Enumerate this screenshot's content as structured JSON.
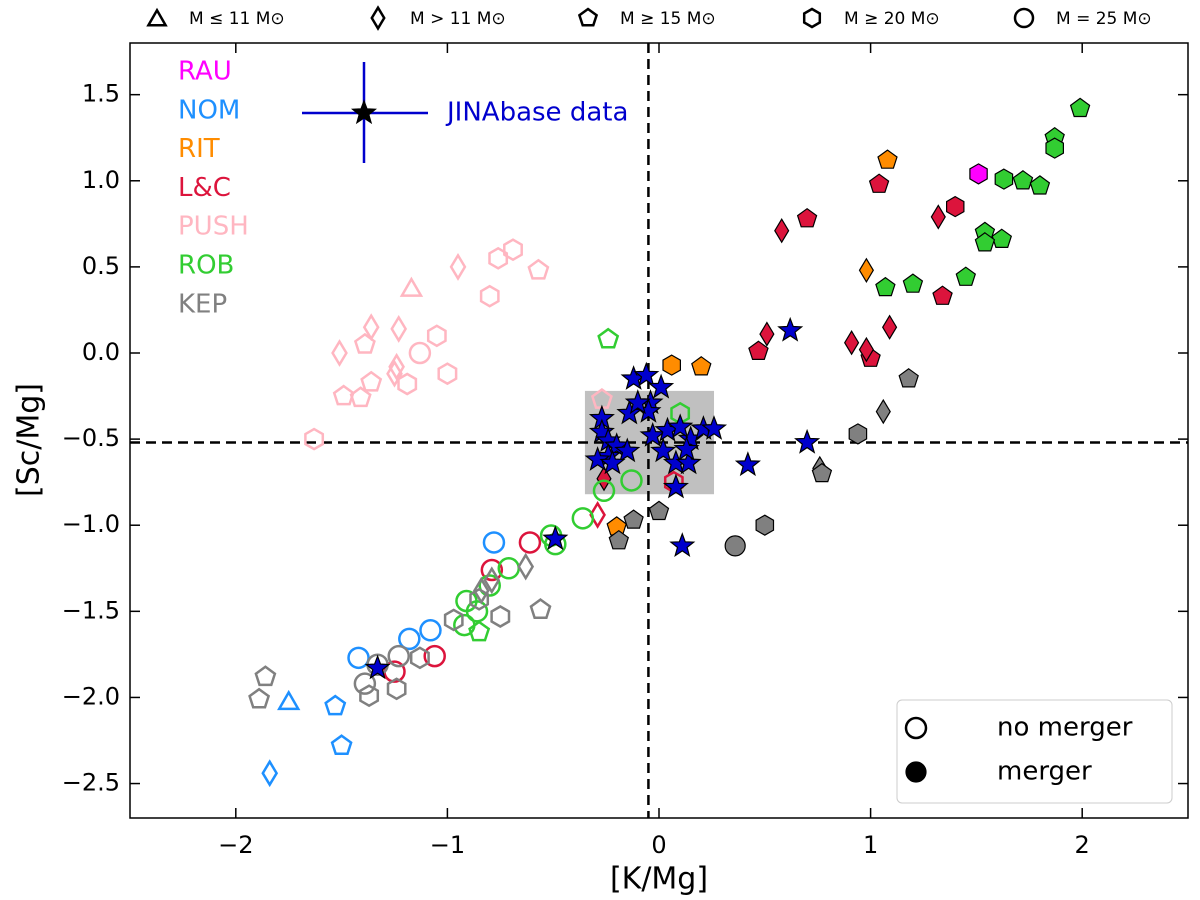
{
  "chart_data": {
    "type": "scatter",
    "xlabel": "[K/Mg]",
    "ylabel": "[Sc/Mg]",
    "xlim": [
      -2.5,
      2.5
    ],
    "ylim": [
      -2.7,
      1.8
    ],
    "xticks": [
      {
        "value": -2,
        "label": "−2"
      },
      {
        "value": -1,
        "label": "−1"
      },
      0,
      1,
      2
    ],
    "yticks": [
      1.5,
      {
        "value": 1.0,
        "label": "1.0"
      },
      0.5,
      {
        "value": 0.0,
        "label": "0.0"
      },
      {
        "value": -0.5,
        "label": "−0.5"
      },
      {
        "value": -1.0,
        "label": "−1.0"
      },
      {
        "value": -1.5,
        "label": "−1.5"
      },
      {
        "value": -2.0,
        "label": "−2.0"
      },
      {
        "value": -2.5,
        "label": "−2.5"
      }
    ],
    "hlines": [
      -0.52
    ],
    "vlines": [
      -0.05
    ],
    "shaded_box": {
      "x": [
        -0.35,
        0.26
      ],
      "y": [
        -0.82,
        -0.22
      ],
      "color": "#b0b0b0"
    },
    "shape_legend": [
      {
        "marker": "t",
        "label": "M ≤ 11 M⊙"
      },
      {
        "marker": "d",
        "label": "M > 11 M⊙"
      },
      {
        "marker": "p",
        "label": "M ≥ 15 M⊙"
      },
      {
        "marker": "h",
        "label": "M ≥ 20 M⊙"
      },
      {
        "marker": "o",
        "label": "M = 25 M⊙"
      }
    ],
    "fill_legend": [
      {
        "label": "no merger",
        "filled": false
      },
      {
        "label": "merger",
        "filled": true
      }
    ],
    "series": [
      {
        "name": "RAU",
        "color": "#ff00ff",
        "x": [
          1.51
        ],
        "y": [
          1.04
        ],
        "markers": [
          "h"
        ],
        "filled": [
          true
        ]
      },
      {
        "name": "NOM",
        "color": "#1e90ff",
        "x": [
          -1.75,
          -1.84,
          -1.53,
          -1.5,
          -0.78,
          -1.42,
          -1.18,
          -1.08
        ],
        "y": [
          -2.02,
          -2.44,
          -2.05,
          -2.28,
          -1.1,
          -1.77,
          -1.66,
          -1.61
        ],
        "markers": [
          "t",
          "d",
          "p",
          "p",
          "o",
          "o",
          "o",
          "o"
        ],
        "filled": [
          false,
          false,
          false,
          false,
          false,
          false,
          false,
          false
        ]
      },
      {
        "name": "RIT",
        "color": "#ff8c00",
        "x": [
          1.08,
          0.2,
          -0.2,
          0.98,
          0.06
        ],
        "y": [
          1.12,
          -0.08,
          -1.01,
          0.48,
          -0.07
        ],
        "markers": [
          "p",
          "p",
          "p",
          "d",
          "h"
        ],
        "filled": [
          true,
          true,
          true,
          true,
          true
        ]
      },
      {
        "name": "L&C",
        "color": "#dc143c",
        "x": [
          0.7,
          1.04,
          1.4,
          1.34,
          1.0,
          0.47,
          0.58,
          0.51,
          0.91,
          1.09,
          1.32,
          -0.26,
          0.98,
          -0.29,
          -0.61,
          -0.79,
          -1.25,
          -1.06,
          0.07
        ],
        "y": [
          0.78,
          0.98,
          0.85,
          0.33,
          -0.03,
          0.01,
          0.71,
          0.11,
          0.06,
          0.15,
          0.79,
          -0.73,
          0.02,
          -0.94,
          -1.1,
          -1.26,
          -1.85,
          -1.76,
          -0.75
        ],
        "markers": [
          "p",
          "p",
          "h",
          "p",
          "p",
          "p",
          "d",
          "d",
          "d",
          "d",
          "d",
          "d",
          "d",
          "d",
          "o",
          "o",
          "o",
          "o",
          "h"
        ],
        "filled": [
          true,
          true,
          true,
          true,
          true,
          true,
          true,
          true,
          true,
          true,
          true,
          true,
          true,
          false,
          false,
          false,
          false,
          false,
          false
        ]
      },
      {
        "name": "PUSH",
        "color": "#ffb6c1",
        "x": [
          -1.17,
          -0.95,
          -1.51,
          -1.23,
          -1.24,
          -0.57,
          -0.69,
          -0.76,
          -0.8,
          -1.05,
          -1.39,
          -1.49,
          -1.63,
          -1.0,
          -0.27,
          -1.36,
          -1.36,
          -1.25,
          -1.19,
          -1.41,
          -1.13
        ],
        "y": [
          0.38,
          0.5,
          0.0,
          0.14,
          -0.08,
          0.48,
          0.6,
          0.55,
          0.33,
          0.1,
          0.05,
          -0.25,
          -0.5,
          -0.12,
          -0.27,
          0.15,
          -0.17,
          -0.12,
          -0.18,
          -0.26,
          0.0
        ],
        "markers": [
          "t",
          "d",
          "d",
          "d",
          "d",
          "p",
          "h",
          "h",
          "h",
          "h",
          "p",
          "p",
          "h",
          "h",
          "p",
          "d",
          "p",
          "d",
          "h",
          "p",
          "o"
        ],
        "filled": [
          false,
          false,
          false,
          false,
          false,
          false,
          false,
          false,
          false,
          false,
          false,
          false,
          false,
          false,
          false,
          false,
          false,
          false,
          false,
          false,
          false
        ]
      },
      {
        "name": "ROB",
        "color": "#32cd32",
        "x": [
          1.99,
          1.87,
          1.87,
          1.63,
          1.72,
          1.8,
          1.62,
          1.54,
          1.54,
          1.45,
          1.2,
          1.07,
          -0.24,
          0.1,
          -0.85,
          -0.13,
          -0.26,
          -0.36,
          -0.51,
          -0.49,
          -0.71,
          -0.8,
          -0.91,
          -0.86,
          -0.92
        ],
        "y": [
          1.42,
          1.25,
          1.19,
          1.01,
          1.0,
          0.97,
          0.66,
          0.7,
          0.64,
          0.44,
          0.4,
          0.38,
          0.08,
          -0.35,
          -1.62,
          -0.74,
          -0.8,
          -0.96,
          -1.06,
          -1.11,
          -1.25,
          -1.35,
          -1.44,
          -1.5,
          -1.58
        ],
        "markers": [
          "p",
          "p",
          "h",
          "h",
          "p",
          "p",
          "p",
          "p",
          "p",
          "p",
          "p",
          "p",
          "p",
          "h",
          "p",
          "o",
          "o",
          "o",
          "o",
          "o",
          "o",
          "o",
          "o",
          "o",
          "o"
        ],
        "filled": [
          true,
          true,
          true,
          true,
          true,
          true,
          true,
          true,
          true,
          true,
          true,
          true,
          false,
          false,
          false,
          false,
          false,
          false,
          false,
          false,
          false,
          false,
          false,
          false,
          false
        ]
      },
      {
        "name": "KEP",
        "color": "#808080",
        "x": [
          1.18,
          0.94,
          0.5,
          0.36,
          1.06,
          0.76,
          0.77,
          0.0,
          -0.12,
          -0.19,
          -1.86,
          -1.89,
          -1.37,
          -1.24,
          -0.97,
          -0.75,
          -0.56,
          -0.85,
          -1.13,
          -0.63,
          -0.79,
          -0.84,
          -1.23,
          -1.39,
          -1.33
        ],
        "y": [
          -0.15,
          -0.47,
          -1.0,
          -1.12,
          -0.34,
          -0.67,
          -0.7,
          -0.92,
          -0.97,
          -1.09,
          -1.88,
          -2.01,
          -1.99,
          -1.95,
          -1.55,
          -1.53,
          -1.49,
          -1.43,
          -1.77,
          -1.24,
          -1.32,
          -1.38,
          -1.76,
          -1.92,
          -1.81
        ],
        "markers": [
          "p",
          "h",
          "h",
          "o",
          "d",
          "d",
          "p",
          "p",
          "p",
          "p",
          "p",
          "p",
          "h",
          "h",
          "h",
          "h",
          "p",
          "h",
          "h",
          "d",
          "d",
          "d",
          "o",
          "o",
          "o"
        ],
        "filled": [
          true,
          true,
          true,
          true,
          true,
          true,
          true,
          true,
          true,
          true,
          false,
          false,
          false,
          false,
          false,
          false,
          false,
          false,
          false,
          false,
          false,
          false,
          false,
          false,
          false
        ]
      },
      {
        "name": "JINAbase data",
        "color": "#0000cd",
        "x": [
          -0.12,
          -0.06,
          0.01,
          -0.04,
          -0.05,
          -0.14,
          -0.1,
          -0.27,
          -0.27,
          -0.24,
          -0.2,
          -0.15,
          -0.24,
          -0.29,
          -0.22,
          -0.03,
          0.04,
          0.02,
          0.15,
          0.1,
          0.21,
          0.26,
          0.08,
          0.14,
          0.13,
          0.08,
          0.11,
          0.42,
          0.7,
          0.62,
          -0.49,
          -1.33
        ],
        "y": [
          -0.15,
          -0.13,
          -0.2,
          -0.29,
          -0.34,
          -0.35,
          -0.29,
          -0.38,
          -0.46,
          -0.51,
          -0.54,
          -0.57,
          -0.6,
          -0.62,
          -0.64,
          -0.48,
          -0.45,
          -0.57,
          -0.5,
          -0.43,
          -0.44,
          -0.44,
          -0.64,
          -0.64,
          -0.56,
          -0.78,
          -1.12,
          -0.65,
          -0.52,
          0.13,
          -1.08,
          -1.83
        ],
        "markers": [
          "*",
          "*",
          "*",
          "*",
          "*",
          "*",
          "*",
          "*",
          "*",
          "*",
          "*",
          "*",
          "*",
          "*",
          "*",
          "*",
          "*",
          "*",
          "*",
          "*",
          "*",
          "*",
          "*",
          "*",
          "*",
          "*",
          "*",
          "*",
          "*",
          "*",
          "*",
          "*"
        ],
        "filled": [
          true,
          true,
          true,
          true,
          true,
          true,
          true,
          true,
          true,
          true,
          true,
          true,
          true,
          true,
          true,
          true,
          true,
          true,
          true,
          true,
          true,
          true,
          true,
          true,
          true,
          true,
          true,
          true,
          true,
          true,
          true,
          true
        ]
      }
    ]
  }
}
